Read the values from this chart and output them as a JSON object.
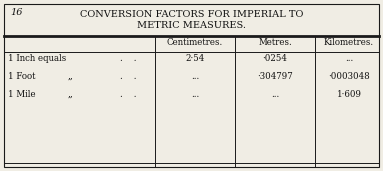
{
  "page_number": "16",
  "title_line1": "CONVERSION FACTORS FOR IMPERIAL TO",
  "title_line2": "METRIC MEASURES.",
  "col_headers": [
    "Centimetres.",
    "Metres.",
    "Kilometres."
  ],
  "row_label_main": [
    "1 Inch equals",
    "1 Foot",
    "1 Mile"
  ],
  "row_label_mid": [
    "",
    "’’",
    "’’"
  ],
  "row_label_dots": [
    ". .",
    ". .",
    ". ."
  ],
  "cells": [
    [
      "2·54",
      "·0254",
      "..."
    ],
    [
      "...",
      "·304797",
      "·0003048"
    ],
    [
      "...",
      "...",
      "1·609"
    ]
  ],
  "bg_color": "#f0ede4",
  "border_color": "#1a1a1a",
  "text_color": "#111111",
  "title_fontsize": 7.0,
  "header_fontsize": 6.2,
  "cell_fontsize": 6.2,
  "pagenumber_fontsize": 7.0,
  "fig_width": 3.83,
  "fig_height": 1.71,
  "dpi": 100
}
